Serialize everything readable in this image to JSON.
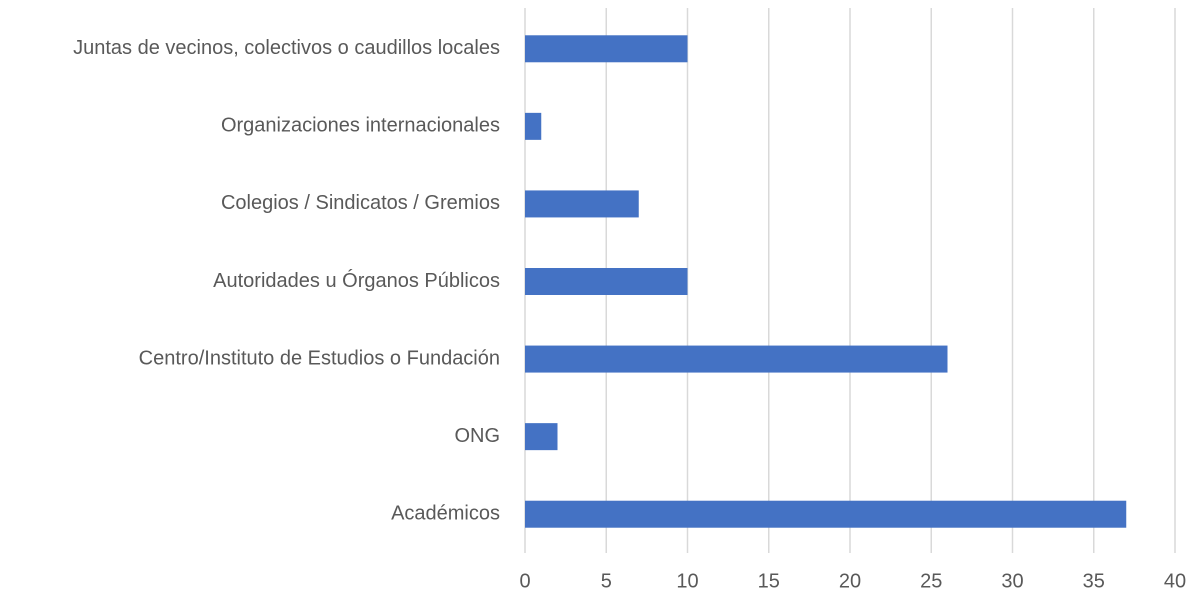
{
  "chart_data": {
    "type": "bar",
    "orientation": "horizontal",
    "categories": [
      "Juntas de vecinos, colectivos o caudillos locales",
      "Organizaciones internacionales",
      "Colegios / Sindicatos / Gremios",
      "Autoridades u Órganos Públicos",
      "Centro/Instituto de Estudios o Fundación",
      "ONG",
      "Académicos"
    ],
    "values": [
      10,
      1,
      7,
      10,
      26,
      2,
      37
    ],
    "color": "#4472c4",
    "xlim": [
      0,
      40
    ],
    "xticks": [
      0,
      5,
      10,
      15,
      20,
      25,
      30,
      35,
      40
    ],
    "grid": true
  }
}
